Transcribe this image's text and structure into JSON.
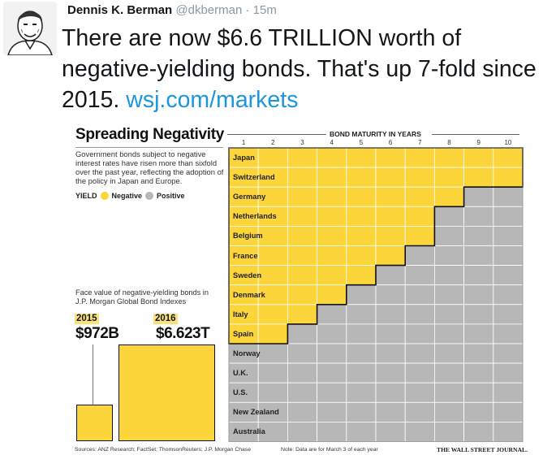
{
  "tweet": {
    "name": "Dennis K. Berman",
    "handle": "@dkberman",
    "separator": "·",
    "time": "15m",
    "text_main": "There are now $6.6 TRILLION worth of negative-yielding bonds. That's up 7-fold since 2015.",
    "link": "wsj.com/markets"
  },
  "chart": {
    "title": "Spreading Negativity",
    "description": "Government bonds subject to negative interest rates have risen more than sixfold over the past year, reflecting the adoption of the policy in Japan and Europe.",
    "legend_label": "YIELD",
    "legend_negative": "Negative",
    "legend_positive": "Positive",
    "maturity_title": "BOND MATURITY IN YEARS",
    "face_value_label": "Face value of negative-yielding bonds in J.P. Morgan Global Bond Indexes",
    "year_2015": "2015",
    "value_2015": "$972B",
    "year_2016": "2016",
    "value_2016": "$6.623T",
    "sources": "Sources: ANZ Research; FactSet; ThomsonReuters; J.P. Morgan Chase",
    "note": "Note: Data are for March 3 of each year",
    "credit": "THE WALL STREET JOURNAL."
  },
  "colors": {
    "negative": "#fbd539",
    "positive": "#b7b7b7",
    "link": "#1b95e0"
  },
  "chart_data": {
    "type": "heatmap",
    "title": "Spreading Negativity",
    "xlabel": "BOND MATURITY IN YEARS",
    "x": [
      "1",
      "2",
      "3",
      "4",
      "5",
      "6",
      "7",
      "8",
      "9",
      "10"
    ],
    "rows": [
      {
        "country": "Japan",
        "negative_through_year": 10
      },
      {
        "country": "Switzerland",
        "negative_through_year": 10
      },
      {
        "country": "Germany",
        "negative_through_year": 8
      },
      {
        "country": "Netherlands",
        "negative_through_year": 7
      },
      {
        "country": "Belgium",
        "negative_through_year": 7
      },
      {
        "country": "France",
        "negative_through_year": 6
      },
      {
        "country": "Sweden",
        "negative_through_year": 5
      },
      {
        "country": "Denmark",
        "negative_through_year": 4
      },
      {
        "country": "Italy",
        "negative_through_year": 3
      },
      {
        "country": "Spain",
        "negative_through_year": 2
      },
      {
        "country": "Norway",
        "negative_through_year": 0
      },
      {
        "country": "U.K.",
        "negative_through_year": 0
      },
      {
        "country": "U.S.",
        "negative_through_year": 0
      },
      {
        "country": "New Zealand",
        "negative_through_year": 0
      },
      {
        "country": "Australia",
        "negative_through_year": 0
      }
    ],
    "face_value": [
      {
        "year": "2015",
        "value": "$972B"
      },
      {
        "year": "2016",
        "value": "$6.623T"
      }
    ]
  }
}
